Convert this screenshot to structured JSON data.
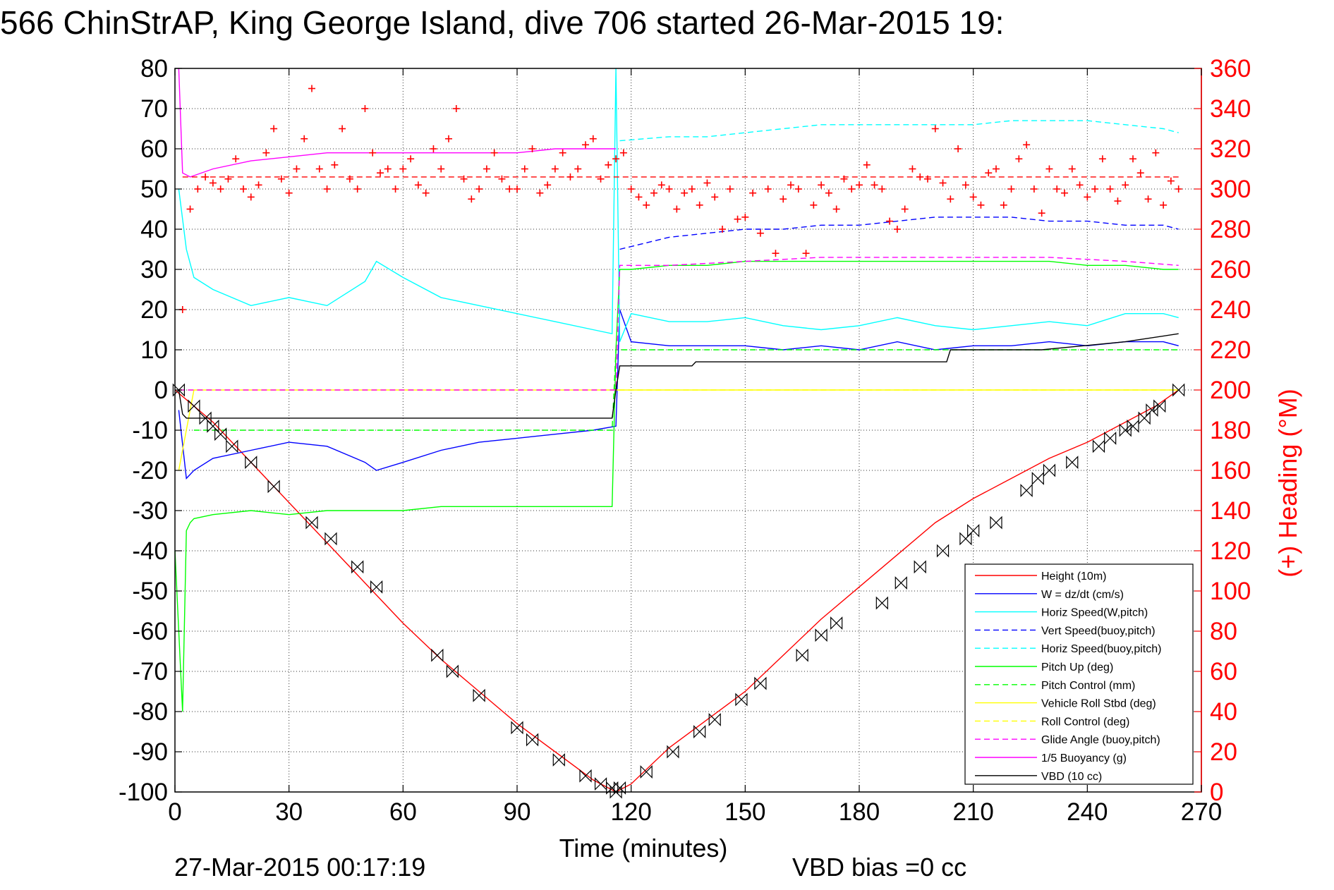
{
  "chart_data": {
    "type": "line",
    "title": "566 ChinStrAP, King George Island, dive 706 started 26-Mar-2015 19:",
    "xlabel": "Time (minutes)",
    "ylabel": "",
    "ylabel_right": "(+) Heading (°M)",
    "footer_date": "27-Mar-2015 00:17:19",
    "footer_bias": "VBD bias =0 cc",
    "xlim": [
      0,
      270
    ],
    "ylim": [
      -100,
      80
    ],
    "ylim_right": [
      0,
      360
    ],
    "xticks": [
      "0",
      "30",
      "60",
      "90",
      "120",
      "150",
      "180",
      "210",
      "240",
      "270"
    ],
    "yticks": [
      "80",
      "70",
      "60",
      "50",
      "40",
      "30",
      "20",
      "10",
      "0",
      "-10",
      "-20",
      "-30",
      "-40",
      "-50",
      "-60",
      "-70",
      "-80",
      "-90",
      "-100"
    ],
    "yticks_right": [
      "360",
      "340",
      "320",
      "300",
      "280",
      "260",
      "240",
      "220",
      "200",
      "180",
      "160",
      "140",
      "120",
      "100",
      "80",
      "60",
      "40",
      "20",
      "0"
    ],
    "grid": true,
    "legend_position": "bottom-right",
    "colors": {
      "axis_text": "#000000",
      "right_axis": "#ff0000",
      "grid": "#000000"
    },
    "series": [
      {
        "name": "Height (10m)",
        "color": "#ff0000",
        "dash": "solid",
        "x": [
          0,
          10,
          20,
          30,
          40,
          50,
          60,
          70,
          80,
          90,
          100,
          110,
          116,
          120,
          130,
          140,
          150,
          160,
          170,
          180,
          190,
          200,
          210,
          220,
          230,
          240,
          250,
          258,
          264
        ],
        "y": [
          0,
          -8,
          -18,
          -28,
          -38,
          -48,
          -58,
          -67,
          -75,
          -83,
          -90,
          -97,
          -100,
          -98,
          -89,
          -82,
          -75,
          -66,
          -57,
          -49,
          -41,
          -33,
          -27,
          -22,
          -17,
          -13,
          -8,
          -4,
          0
        ]
      },
      {
        "name": "W = dz/dt (cm/s)",
        "color": "#0000ff",
        "dash": "solid",
        "x": [
          1,
          3,
          5,
          10,
          20,
          30,
          40,
          50,
          53,
          60,
          70,
          80,
          90,
          100,
          110,
          116,
          117,
          120,
          130,
          140,
          150,
          160,
          170,
          180,
          190,
          200,
          210,
          220,
          230,
          240,
          250,
          260,
          264
        ],
        "y": [
          -5,
          -22,
          -20,
          -17,
          -15,
          -13,
          -14,
          -18,
          -20,
          -18,
          -15,
          -13,
          -12,
          -11,
          -10,
          -9,
          20,
          12,
          11,
          11,
          11,
          10,
          11,
          10,
          12,
          10,
          11,
          11,
          12,
          11,
          12,
          12,
          11
        ]
      },
      {
        "name": "Horiz Speed(W,pitch)",
        "color": "#00ffff",
        "dash": "solid",
        "x": [
          1,
          3,
          5,
          10,
          20,
          30,
          40,
          50,
          53,
          60,
          70,
          80,
          90,
          100,
          110,
          115,
          116,
          117,
          120,
          130,
          140,
          150,
          160,
          170,
          180,
          190,
          200,
          210,
          220,
          230,
          240,
          250,
          260,
          264
        ],
        "y": [
          50,
          35,
          28,
          25,
          21,
          23,
          21,
          27,
          32,
          28,
          23,
          21,
          19,
          17,
          15,
          14,
          80,
          12,
          19,
          17,
          17,
          18,
          16,
          15,
          16,
          18,
          16,
          15,
          16,
          17,
          16,
          19,
          19,
          18
        ]
      },
      {
        "name": "Vert Speed(buoy,pitch)",
        "color": "#0000ff",
        "dash": "dashed",
        "x": [
          117,
          130,
          140,
          150,
          160,
          170,
          180,
          190,
          200,
          210,
          220,
          230,
          240,
          250,
          260,
          264
        ],
        "y": [
          35,
          38,
          39,
          40,
          40,
          41,
          41,
          42,
          43,
          43,
          43,
          42,
          42,
          41,
          41,
          40
        ]
      },
      {
        "name": "Horiz Speed(buoy,pitch)",
        "color": "#00ffff",
        "dash": "dashed",
        "x": [
          117,
          130,
          140,
          150,
          160,
          170,
          180,
          190,
          200,
          210,
          220,
          230,
          240,
          250,
          260,
          264
        ],
        "y": [
          62,
          63,
          63,
          64,
          65,
          66,
          66,
          66,
          66,
          66,
          67,
          67,
          67,
          66,
          65,
          64
        ]
      },
      {
        "name": "Pitch Up (deg)",
        "color": "#00ff00",
        "dash": "solid",
        "x": [
          0,
          2,
          3,
          4,
          5,
          10,
          20,
          30,
          40,
          50,
          60,
          70,
          80,
          90,
          100,
          110,
          115,
          116,
          117,
          120,
          130,
          140,
          150,
          160,
          170,
          180,
          190,
          200,
          210,
          220,
          230,
          240,
          250,
          260,
          264
        ],
        "y": [
          -40,
          -80,
          -35,
          -33,
          -32,
          -31,
          -30,
          -31,
          -30,
          -30,
          -30,
          -29,
          -29,
          -29,
          -29,
          -29,
          -29,
          10,
          30,
          30,
          31,
          31,
          32,
          32,
          32,
          32,
          32,
          32,
          32,
          32,
          32,
          31,
          31,
          30,
          30
        ]
      },
      {
        "name": "Pitch Control (mm)",
        "color": "#00ff00",
        "dash": "dashed",
        "x": [
          5,
          115,
          116,
          264
        ],
        "y": [
          -10,
          -10,
          10,
          10
        ]
      },
      {
        "name": "Vehicle Roll Stbd (deg)",
        "color": "#ffff00",
        "dash": "solid",
        "x": [
          1,
          5,
          10,
          30,
          60,
          90,
          116,
          120,
          150,
          180,
          210,
          240,
          264
        ],
        "y": [
          -20,
          0,
          0,
          0,
          0,
          0,
          0,
          0,
          0,
          0,
          0,
          0,
          0
        ]
      },
      {
        "name": "Roll Control (deg)",
        "color": "#ffff00",
        "dash": "dashed",
        "x": [
          1,
          264
        ],
        "y": [
          0,
          0
        ]
      },
      {
        "name": "Glide Angle (buoy,pitch)",
        "color": "#ff00ff",
        "dash": "dashed",
        "x": [
          1,
          116,
          117,
          130,
          150,
          170,
          190,
          210,
          230,
          250,
          264
        ],
        "y": [
          0,
          0,
          31,
          31,
          32,
          33,
          33,
          33,
          33,
          32,
          31
        ]
      },
      {
        "name": "1/5 Buoyancy (g)",
        "color": "#ff00ff",
        "dash": "solid",
        "x": [
          1,
          2,
          4,
          10,
          20,
          30,
          40,
          50,
          60,
          70,
          80,
          90,
          100,
          110,
          116
        ],
        "y": [
          80,
          54,
          53,
          55,
          57,
          58,
          59,
          59,
          59,
          59,
          59,
          59,
          60,
          60,
          60
        ]
      },
      {
        "name": "VBD (10 cc)",
        "color": "#000000",
        "dash": "solid",
        "x": [
          1,
          2,
          3,
          115,
          116,
          117,
          136,
          137,
          203,
          204,
          228,
          250,
          264
        ],
        "y": [
          0,
          -6,
          -7,
          -7,
          0,
          6,
          6,
          7,
          7,
          10,
          10,
          12,
          14
        ]
      }
    ],
    "heading_series": {
      "name": "Heading",
      "color": "#ff0000",
      "axis": "right",
      "marker": "+",
      "x": [
        2,
        4,
        6,
        8,
        10,
        12,
        14,
        16,
        18,
        20,
        22,
        24,
        26,
        28,
        30,
        32,
        34,
        36,
        38,
        40,
        42,
        44,
        46,
        48,
        50,
        52,
        54,
        56,
        58,
        60,
        62,
        64,
        66,
        68,
        70,
        72,
        74,
        76,
        78,
        80,
        82,
        84,
        86,
        88,
        90,
        92,
        94,
        96,
        98,
        100,
        102,
        104,
        106,
        108,
        110,
        112,
        114,
        116,
        118,
        120,
        122,
        124,
        126,
        128,
        130,
        132,
        134,
        136,
        138,
        140,
        142,
        144,
        146,
        148,
        150,
        152,
        154,
        156,
        158,
        160,
        162,
        164,
        166,
        168,
        170,
        172,
        174,
        176,
        178,
        180,
        182,
        184,
        186,
        188,
        190,
        192,
        194,
        196,
        198,
        200,
        202,
        204,
        206,
        208,
        210,
        212,
        214,
        216,
        218,
        220,
        222,
        224,
        226,
        228,
        230,
        232,
        234,
        236,
        238,
        240,
        242,
        244,
        246,
        248,
        250,
        252,
        254,
        256,
        258,
        260,
        262,
        264
      ],
      "y": [
        240,
        290,
        300,
        306,
        303,
        300,
        305,
        315,
        300,
        296,
        302,
        318,
        330,
        305,
        298,
        310,
        325,
        350,
        310,
        300,
        312,
        330,
        305,
        300,
        340,
        318,
        308,
        310,
        300,
        310,
        315,
        302,
        298,
        320,
        310,
        325,
        340,
        305,
        295,
        300,
        310,
        318,
        305,
        300,
        300,
        310,
        320,
        298,
        302,
        310,
        318,
        306,
        310,
        322,
        325,
        305,
        312,
        315,
        318,
        300,
        296,
        292,
        298,
        302,
        300,
        290,
        298,
        300,
        292,
        303,
        296,
        280,
        300,
        285,
        286,
        298,
        278,
        300,
        268,
        295,
        302,
        300,
        268,
        292,
        302,
        298,
        290,
        305,
        300,
        302,
        312,
        302,
        300,
        284,
        280,
        290,
        310,
        306,
        305,
        330,
        303,
        295,
        320,
        302,
        296,
        292,
        308,
        310,
        292,
        300,
        315,
        322,
        300,
        288,
        310,
        300,
        298,
        310,
        302,
        296,
        300,
        315,
        300,
        294,
        302,
        315,
        308,
        295,
        318,
        292,
        304,
        300
      ]
    },
    "heading_mean": {
      "color": "#ff0000",
      "dash": "dashed",
      "value": 306
    },
    "triangle_markers": {
      "description": "",
      "x": [
        1,
        5,
        8,
        10,
        12,
        15,
        20,
        26,
        36,
        41,
        48,
        53,
        69,
        73,
        80,
        90,
        94,
        101,
        108,
        112,
        115,
        116,
        117,
        124,
        131,
        138,
        142,
        149,
        154,
        165,
        170,
        174,
        186,
        191,
        196,
        202,
        208,
        210,
        216,
        224,
        227,
        230,
        236,
        243,
        246,
        250,
        252,
        255,
        257,
        259,
        264
      ],
      "y": [
        0,
        -4,
        -7,
        -9,
        -11,
        -14,
        -18,
        -24,
        -33,
        -37,
        -44,
        -49,
        -66,
        -70,
        -76,
        -84,
        -87,
        -92,
        -96,
        -98,
        -99,
        -100,
        -99,
        -95,
        -90,
        -85,
        -82,
        -77,
        -73,
        -66,
        -61,
        -58,
        -53,
        -48,
        -44,
        -40,
        -37,
        -35,
        -33,
        -25,
        -22,
        -20,
        -18,
        -14,
        -12,
        -10,
        -9,
        -7,
        -5,
        -4,
        0
      ]
    }
  }
}
